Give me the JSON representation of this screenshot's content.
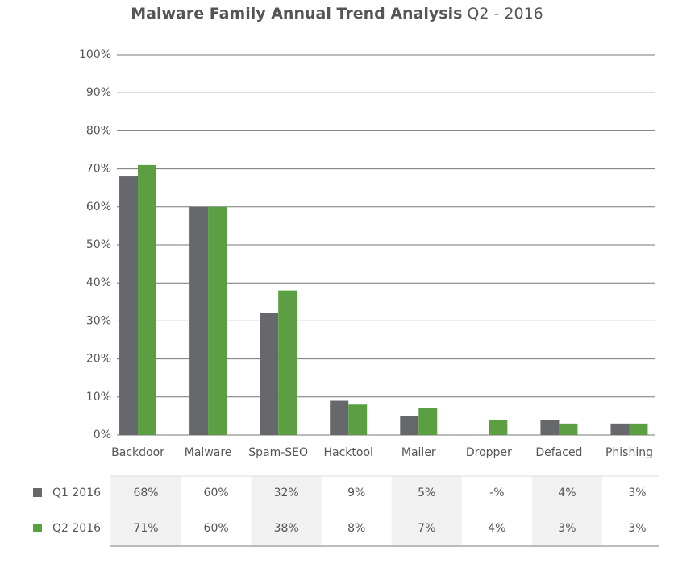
{
  "chart_data": {
    "type": "bar",
    "title": "Malware Family Annual Trend Analysis",
    "subtitle": "Q2 - 2016",
    "categories": [
      "Backdoor",
      "Malware",
      "Spam-SEO",
      "Hacktool",
      "Mailer",
      "Dropper",
      "Defaced",
      "Phishing"
    ],
    "series": [
      {
        "name": "Q1 2016",
        "color": "#66686b",
        "values": [
          68,
          60,
          32,
          9,
          5,
          null,
          4,
          3
        ],
        "value_labels": [
          "68%",
          "60%",
          "32%",
          "9%",
          "5%",
          "-%",
          "4%",
          "3%"
        ]
      },
      {
        "name": "Q2 2016",
        "color": "#5b9f42",
        "values": [
          71,
          60,
          38,
          8,
          7,
          4,
          3,
          3
        ],
        "value_labels": [
          "71%",
          "60%",
          "38%",
          "8%",
          "7%",
          "4%",
          "3%",
          "3%"
        ]
      }
    ],
    "ylim": [
      0,
      100
    ],
    "yticks": [
      {
        "value": 0,
        "label": "0%"
      },
      {
        "value": 10,
        "label": "10%"
      },
      {
        "value": 20,
        "label": "20%"
      },
      {
        "value": 30,
        "label": "30%"
      },
      {
        "value": 40,
        "label": "40%"
      },
      {
        "value": 50,
        "label": "50%"
      },
      {
        "value": 60,
        "label": "60%"
      },
      {
        "value": 70,
        "label": "70%"
      },
      {
        "value": 80,
        "label": "80%"
      },
      {
        "value": 90,
        "label": "90%"
      },
      {
        "value": 100,
        "label": "100%"
      }
    ],
    "grid": true
  }
}
